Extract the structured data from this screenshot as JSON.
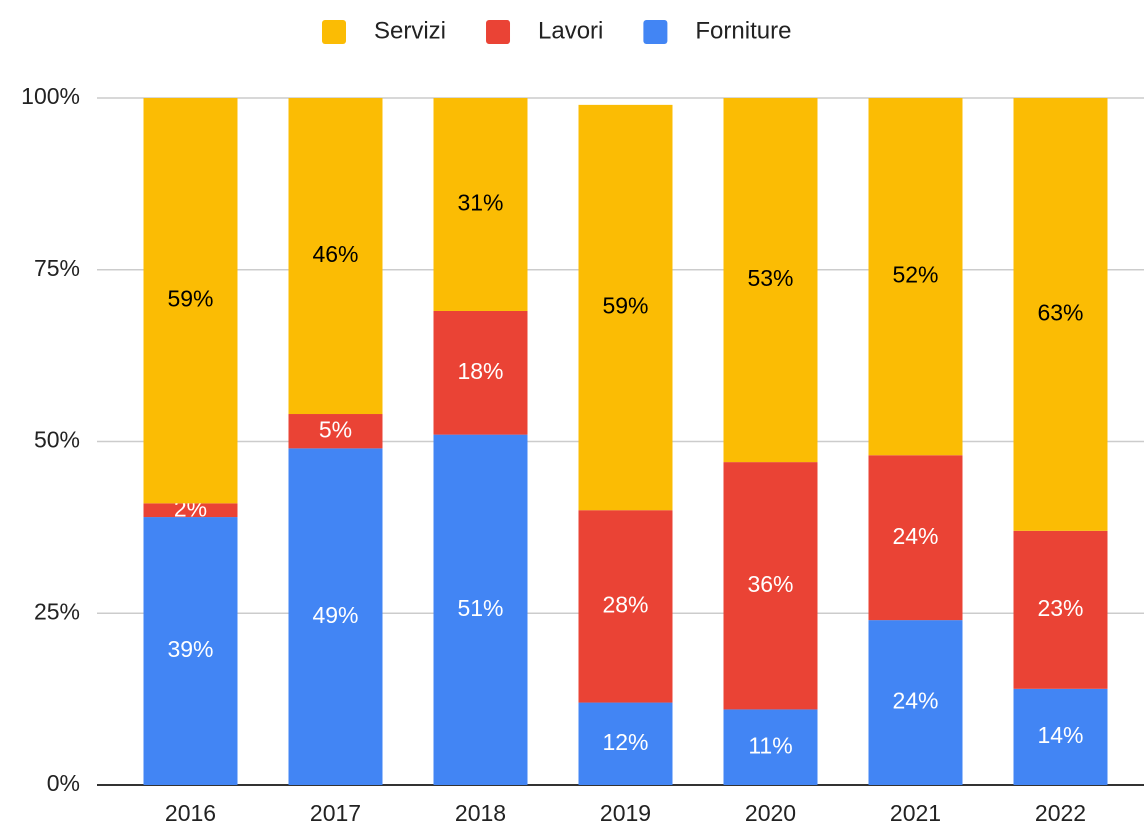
{
  "chart_data": {
    "type": "bar",
    "stacked": true,
    "categories": [
      "2016",
      "2017",
      "2018",
      "2019",
      "2020",
      "2021",
      "2022"
    ],
    "series": [
      {
        "name": "Servizi",
        "color": "#fbbc04",
        "label_color": "#000000",
        "values": [
          59,
          46,
          31,
          59,
          53,
          52,
          63
        ],
        "value_labels": [
          "59%",
          "46%",
          "31%",
          "59%",
          "53%",
          "52%",
          "63%"
        ]
      },
      {
        "name": "Lavori",
        "color": "#ea4335",
        "label_color": "#ffffff",
        "values": [
          2,
          5,
          18,
          28,
          36,
          24,
          23
        ],
        "value_labels": [
          "2%",
          "5%",
          "18%",
          "28%",
          "36%",
          "24%",
          "23%"
        ]
      },
      {
        "name": "Forniture",
        "color": "#4285f4",
        "label_color": "#ffffff",
        "values": [
          39,
          49,
          51,
          12,
          11,
          24,
          14
        ],
        "value_labels": [
          "39%",
          "49%",
          "51%",
          "12%",
          "11%",
          "24%",
          "14%"
        ]
      }
    ],
    "ylim": [
      0,
      100
    ],
    "yticks": [
      {
        "value": 0,
        "label": "0%"
      },
      {
        "value": 25,
        "label": "25%"
      },
      {
        "value": 50,
        "label": "50%"
      },
      {
        "value": 75,
        "label": "75%"
      },
      {
        "value": 100,
        "label": "100%"
      }
    ],
    "grid": true,
    "legend": "top"
  }
}
